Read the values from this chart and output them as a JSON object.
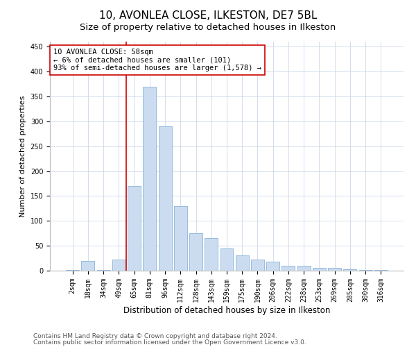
{
  "title": "10, AVONLEA CLOSE, ILKESTON, DE7 5BL",
  "subtitle": "Size of property relative to detached houses in Ilkeston",
  "xlabel": "Distribution of detached houses by size in Ilkeston",
  "ylabel": "Number of detached properties",
  "categories": [
    "2sqm",
    "18sqm",
    "34sqm",
    "49sqm",
    "65sqm",
    "81sqm",
    "96sqm",
    "112sqm",
    "128sqm",
    "143sqm",
    "159sqm",
    "175sqm",
    "190sqm",
    "206sqm",
    "222sqm",
    "238sqm",
    "253sqm",
    "269sqm",
    "285sqm",
    "300sqm",
    "316sqm"
  ],
  "values": [
    1,
    20,
    2,
    22,
    170,
    370,
    290,
    130,
    75,
    65,
    45,
    30,
    22,
    18,
    10,
    10,
    6,
    5,
    3,
    2,
    1
  ],
  "bar_color": "#ccdcf0",
  "bar_edge_color": "#8ab4d8",
  "vline_color": "#cc0000",
  "vline_x_index": 4,
  "annotation_text": "10 AVONLEA CLOSE: 58sqm\n← 6% of detached houses are smaller (101)\n93% of semi-detached houses are larger (1,578) →",
  "annotation_box_color": "#ffffff",
  "annotation_box_edge": "#cc0000",
  "ylim": [
    0,
    460
  ],
  "yticks": [
    0,
    50,
    100,
    150,
    200,
    250,
    300,
    350,
    400,
    450
  ],
  "footer1": "Contains HM Land Registry data © Crown copyright and database right 2024.",
  "footer2": "Contains public sector information licensed under the Open Government Licence v3.0.",
  "bg_color": "#ffffff",
  "grid_color": "#ccd8e8",
  "title_fontsize": 11,
  "subtitle_fontsize": 9.5,
  "xlabel_fontsize": 8.5,
  "ylabel_fontsize": 8,
  "tick_fontsize": 7,
  "annotation_fontsize": 7.5,
  "footer_fontsize": 6.5
}
